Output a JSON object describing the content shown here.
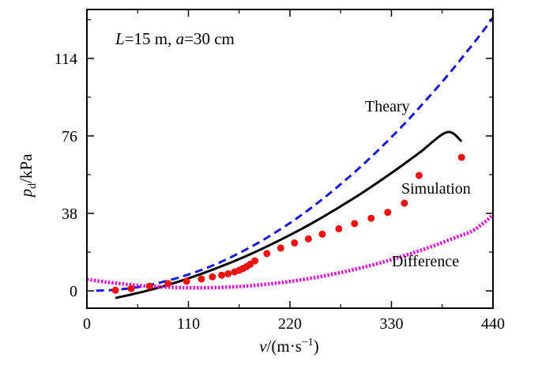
{
  "chart_data": {
    "type": "line",
    "annotation": {
      "L_sym": "L",
      "L_val": "=15 m, ",
      "a_sym": "a",
      "a_val": "=30 cm"
    },
    "xlabel": {
      "sym": "v",
      "unit": "/(m·s",
      "sup": "−1",
      "close": ")"
    },
    "ylabel": {
      "sym": "p",
      "sub": "d",
      "unit": "/kPa"
    },
    "xlim": [
      0,
      440
    ],
    "ylim": [
      -8.5,
      138
    ],
    "xticks": [
      0,
      110,
      220,
      330,
      440
    ],
    "yticks": [
      0,
      38,
      76,
      114
    ],
    "grid": false,
    "series": [
      {
        "name": "Theary",
        "style": "dashed-line",
        "color": "#1a1adb",
        "points": [
          [
            10,
            0.1
          ],
          [
            30,
            0.5
          ],
          [
            50,
            1.5
          ],
          [
            70,
            3.1
          ],
          [
            90,
            5.3
          ],
          [
            110,
            8.0
          ],
          [
            130,
            11.3
          ],
          [
            150,
            15.2
          ],
          [
            170,
            19.7
          ],
          [
            190,
            24.7
          ],
          [
            210,
            30.3
          ],
          [
            230,
            36.4
          ],
          [
            250,
            43.1
          ],
          [
            270,
            50.4
          ],
          [
            290,
            58.2
          ],
          [
            310,
            66.5
          ],
          [
            330,
            75.4
          ],
          [
            350,
            84.8
          ],
          [
            370,
            94.8
          ],
          [
            390,
            105.2
          ],
          [
            410,
            116.3
          ],
          [
            430,
            127.8
          ],
          [
            444,
            136.5
          ]
        ]
      },
      {
        "name": "Simulation",
        "style": "solid-line",
        "color": "#000000",
        "points": [
          [
            31,
            -3.5
          ],
          [
            60,
            -0.5
          ],
          [
            90,
            3.2
          ],
          [
            120,
            7.7
          ],
          [
            150,
            12.8
          ],
          [
            180,
            18.6
          ],
          [
            210,
            25.1
          ],
          [
            240,
            32.2
          ],
          [
            270,
            40.1
          ],
          [
            300,
            48.6
          ],
          [
            330,
            57.8
          ],
          [
            360,
            67.6
          ],
          [
            390,
            77.8
          ],
          [
            406,
            73.3
          ]
        ]
      },
      {
        "name": "Difference",
        "style": "dotted-line",
        "color": "#e011d0",
        "points": [
          [
            0,
            5.6
          ],
          [
            20,
            4.4
          ],
          [
            40,
            3.4
          ],
          [
            60,
            2.5
          ],
          [
            80,
            2.0
          ],
          [
            100,
            1.6
          ],
          [
            120,
            1.5
          ],
          [
            140,
            1.6
          ],
          [
            160,
            2.0
          ],
          [
            180,
            2.6
          ],
          [
            200,
            3.5
          ],
          [
            220,
            4.6
          ],
          [
            240,
            6.0
          ],
          [
            260,
            7.6
          ],
          [
            280,
            9.5
          ],
          [
            300,
            11.6
          ],
          [
            320,
            14.0
          ],
          [
            340,
            16.7
          ],
          [
            360,
            19.6
          ],
          [
            380,
            22.8
          ],
          [
            400,
            26.3
          ],
          [
            420,
            30.0
          ],
          [
            444,
            38.6
          ]
        ]
      },
      {
        "name": "",
        "style": "markers",
        "color": "#ee1111",
        "points": [
          [
            31,
            0.3
          ],
          [
            48,
            1.1
          ],
          [
            68,
            2.3
          ],
          [
            88,
            3.6
          ],
          [
            108,
            4.7
          ],
          [
            124,
            5.8
          ],
          [
            136,
            6.9
          ],
          [
            146,
            7.7
          ],
          [
            153,
            8.4
          ],
          [
            160,
            9.3
          ],
          [
            165,
            10.1
          ],
          [
            169,
            10.9
          ],
          [
            173,
            11.9
          ],
          [
            177,
            13.1
          ],
          [
            182,
            14.7
          ],
          [
            195,
            18.3
          ],
          [
            210,
            21.0
          ],
          [
            225,
            23.5
          ],
          [
            240,
            25.5
          ],
          [
            255,
            27.8
          ],
          [
            273,
            30.5
          ],
          [
            290,
            33.0
          ],
          [
            308,
            35.6
          ],
          [
            326,
            38.5
          ],
          [
            344,
            43.0
          ],
          [
            360,
            56.6
          ],
          [
            406,
            65.5
          ]
        ]
      }
    ]
  }
}
